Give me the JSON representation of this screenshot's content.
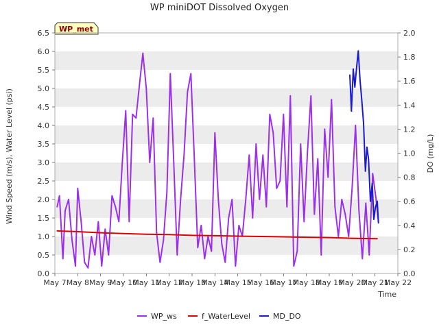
{
  "chart_data": {
    "type": "line",
    "title": "WP miniDOT Dissolved Oxygen",
    "badge": "WP_met",
    "xlabel": "Time",
    "ylabel_left": "Wind Speed (m/s), Water Level (psi)",
    "ylabel_right": "DO (mg/L)",
    "x_tick_labels": [
      "May 7",
      "May 8",
      "May 9",
      "May 10",
      "May 11",
      "May 12",
      "May 13",
      "May 14",
      "May 15",
      "May 16",
      "May 17",
      "May 18",
      "May 19",
      "May 20",
      "May 21",
      "May 22"
    ],
    "y_left_ticks": [
      "0.0",
      "0.5",
      "1.0",
      "1.5",
      "2.0",
      "2.5",
      "3.0",
      "3.5",
      "4.0",
      "4.5",
      "5.0",
      "5.5",
      "6.0",
      "6.5"
    ],
    "y_right_ticks": [
      "0.0",
      "0.2",
      "0.4",
      "0.6",
      "0.8",
      "1.0",
      "1.2",
      "1.4",
      "1.6",
      "1.8",
      "2.0"
    ],
    "x_range_days": [
      7,
      22
    ],
    "y_left_range": [
      0,
      6.5
    ],
    "y_right_range": [
      0,
      2.0
    ],
    "grid": "horizontal bands",
    "legend_position": "bottom",
    "series": [
      {
        "name": "WP_ws",
        "color": "#9b30e8",
        "axis": "left",
        "x": [
          7.1,
          7.2,
          7.35,
          7.45,
          7.6,
          7.75,
          7.9,
          8.0,
          8.15,
          8.3,
          8.45,
          8.6,
          8.75,
          8.9,
          9.05,
          9.2,
          9.35,
          9.5,
          9.65,
          9.8,
          9.95,
          10.1,
          10.25,
          10.4,
          10.55,
          10.7,
          10.85,
          11.0,
          11.15,
          11.3,
          11.45,
          11.6,
          11.75,
          11.9,
          12.05,
          12.2,
          12.35,
          12.5,
          12.65,
          12.8,
          12.95,
          13.1,
          13.25,
          13.4,
          13.55,
          13.7,
          13.85,
          14.0,
          14.15,
          14.3,
          14.45,
          14.6,
          14.75,
          14.9,
          15.05,
          15.2,
          15.35,
          15.5,
          15.65,
          15.8,
          15.95,
          16.1,
          16.25,
          16.4,
          16.55,
          16.7,
          16.85,
          17.0,
          17.15,
          17.3,
          17.45,
          17.6,
          17.75,
          17.9,
          18.05,
          18.2,
          18.35,
          18.5,
          18.65,
          18.8,
          18.95,
          19.1,
          19.25,
          19.4,
          19.55,
          19.7,
          19.85,
          20.0,
          20.15,
          20.3,
          20.45,
          20.6,
          20.75,
          20.9,
          21.05,
          21.15
        ],
        "values": [
          1.8,
          2.1,
          0.4,
          1.7,
          2.0,
          0.9,
          0.2,
          2.3,
          1.4,
          0.3,
          0.15,
          1.0,
          0.5,
          1.4,
          0.2,
          1.2,
          0.5,
          2.1,
          1.8,
          1.4,
          3.0,
          4.4,
          1.4,
          4.3,
          4.2,
          5.1,
          5.95,
          5.0,
          3.0,
          4.2,
          1.1,
          0.3,
          0.9,
          2.2,
          5.4,
          3.0,
          0.5,
          2.0,
          3.2,
          4.9,
          5.4,
          3.1,
          0.7,
          1.3,
          0.4,
          1.0,
          0.6,
          3.8,
          2.0,
          0.8,
          0.3,
          1.5,
          2.0,
          0.2,
          1.3,
          1.0,
          2.0,
          3.2,
          1.5,
          3.5,
          2.0,
          3.2,
          1.8,
          4.3,
          3.8,
          2.3,
          2.5,
          4.3,
          1.8,
          4.8,
          0.2,
          0.6,
          3.5,
          1.4,
          3.3,
          4.8,
          1.6,
          3.1,
          0.5,
          3.9,
          2.6,
          4.7,
          1.8,
          1.0,
          2.0,
          1.6,
          1.0,
          2.3,
          4.0,
          1.7,
          0.4,
          1.9,
          0.5,
          2.7,
          2.0,
          1.4
        ]
      },
      {
        "name": "f_WaterLevel",
        "color": "#dd0000",
        "axis": "left",
        "x": [
          7.1,
          8.0,
          9.0,
          10.0,
          11.0,
          12.0,
          13.0,
          14.0,
          15.0,
          16.0,
          17.0,
          18.0,
          19.0,
          20.0,
          21.1
        ],
        "values": [
          1.15,
          1.13,
          1.1,
          1.08,
          1.06,
          1.05,
          1.03,
          1.02,
          1.01,
          1.0,
          0.99,
          0.98,
          0.97,
          0.95,
          0.94
        ]
      },
      {
        "name": "MD_DO",
        "color": "#1a1ad0",
        "axis": "right",
        "x": [
          19.9,
          19.97,
          20.05,
          20.12,
          20.2,
          20.27,
          20.35,
          20.42,
          20.5,
          20.58,
          20.65,
          20.72,
          20.8,
          20.88,
          20.95,
          21.02,
          21.1,
          21.15
        ],
        "values": [
          1.65,
          1.35,
          1.7,
          1.55,
          1.72,
          1.85,
          1.6,
          1.45,
          1.25,
          0.85,
          1.05,
          0.95,
          0.6,
          0.75,
          0.45,
          0.55,
          0.6,
          0.42
        ]
      }
    ]
  }
}
